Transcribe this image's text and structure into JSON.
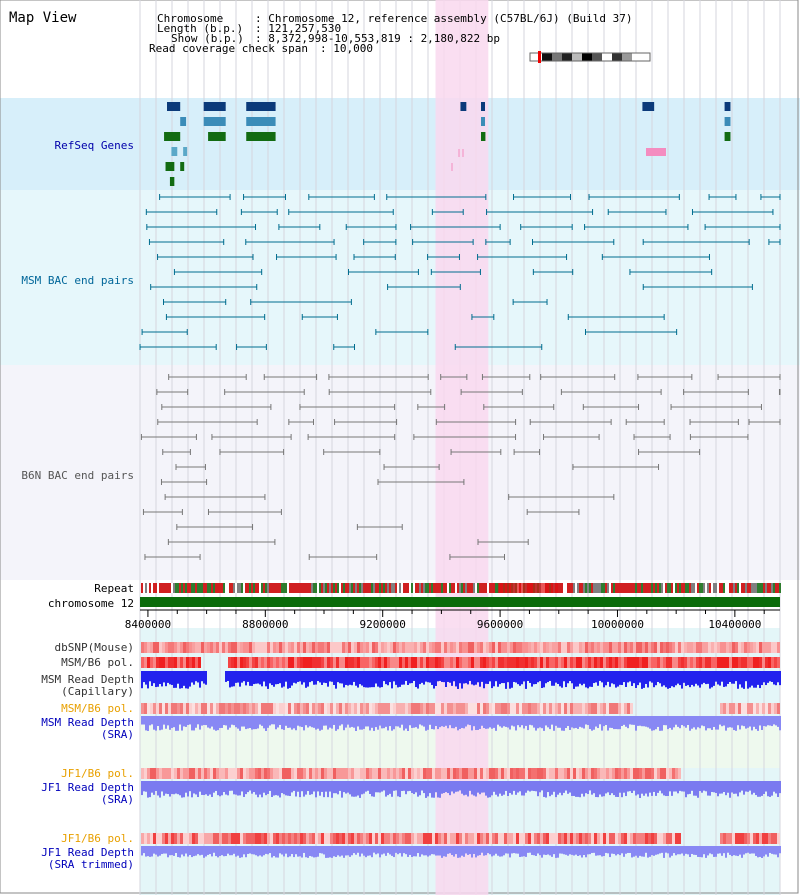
{
  "view": {
    "title": "Map View",
    "info": {
      "chromosome_label": "Chromosome",
      "chromosome_value": ": Chromosome 12, reference assembly (C57BL/6J) (Build 37)",
      "length_label": "Length (b.p.)",
      "length_value": ": 121,257,530",
      "show_label": "Show (b.p.)",
      "show_value": ": 8,372,998-10,553,819 : 2,180,822 bp",
      "coverage_label": "Read coverage check span",
      "coverage_value": ": 10,000"
    }
  },
  "tracks": {
    "refseq": {
      "label": "RefSeq Genes",
      "color": "#0000aa"
    },
    "msm_bac": {
      "label": "MSM BAC end pairs",
      "color": "#006699"
    },
    "b6n_bac": {
      "label": "B6N BAC end pairs",
      "color": "#666666"
    },
    "repeat": {
      "label": "Repeat"
    },
    "chromosome": {
      "label": "chromosome 12"
    },
    "dbsnp": {
      "label": "dbSNP(Mouse)"
    },
    "msm_b6_pol_cap": {
      "label": "MSM/B6 pol."
    },
    "msm_depth_cap": {
      "label1": "MSM Read Depth",
      "label2": "(Capillary)"
    },
    "msm_b6_pol_sra": {
      "label": "MSM/B6 pol.",
      "color": "#e8a000"
    },
    "msm_depth_sra": {
      "label1": "MSM Read Depth",
      "label2": "(SRA)",
      "color": "#0000bb"
    },
    "jf1_b6_pol": {
      "label": "JF1/B6 pol.",
      "color": "#e8a000"
    },
    "jf1_depth_sra": {
      "label1": "JF1 Read Depth",
      "label2": "(SRA)",
      "color": "#0000bb"
    },
    "jf1_b6_pol_trim": {
      "label": "JF1/B6 pol.",
      "color": "#e8a000"
    },
    "jf1_depth_trim": {
      "label1": "JF1 Read Depth",
      "label2": "(SRA trimmed)",
      "color": "#0000bb"
    }
  },
  "axis": {
    "start_bp": 8372998,
    "end_bp": 10553819,
    "ticks": [
      "8400000",
      "8800000",
      "9200000",
      "9600000",
      "10000000",
      "10400000"
    ]
  },
  "highlight": {
    "start_bp": 9380000,
    "end_bp": 9560000,
    "color": "#f9d8ef"
  }
}
